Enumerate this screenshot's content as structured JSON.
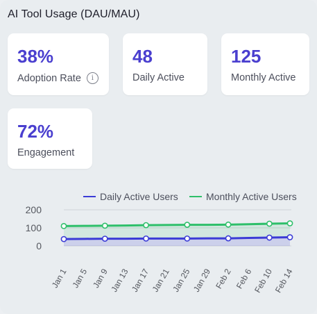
{
  "header": {
    "title": "AI Tool Usage (DAU/MAU)"
  },
  "cards": [
    {
      "value": "38%",
      "label": "Adoption Rate",
      "icon": "info-icon"
    },
    {
      "value": "48",
      "label": "Daily Active"
    },
    {
      "value": "125",
      "label": "Monthly Active"
    },
    {
      "value": "72%",
      "label": "Engagement"
    }
  ],
  "colors": {
    "accent": "#4a3fcf",
    "dau": "#3b3bd6",
    "mau": "#2ebf6a"
  },
  "chart_data": {
    "type": "line",
    "x": [
      "Jan 1",
      "Jan 5",
      "Jan 9",
      "Jan 13",
      "Jan 17",
      "Jan 21",
      "Jan 25",
      "Jan 29",
      "Feb 2",
      "Feb 6",
      "Feb 10",
      "Feb 14"
    ],
    "marker_every": 2,
    "series": [
      {
        "name": "Daily Active Users",
        "color": "#3b3bd6",
        "values": [
          38,
          39,
          40,
          40,
          41,
          41,
          41,
          42,
          42,
          44,
          46,
          48
        ]
      },
      {
        "name": "Monthly Active Users",
        "color": "#2ebf6a",
        "values": [
          110,
          111,
          112,
          113,
          115,
          116,
          117,
          117,
          118,
          120,
          123,
          125
        ]
      }
    ],
    "yticks": [
      "0",
      "100",
      "200"
    ],
    "ylim": [
      0,
      200
    ],
    "legend": "top",
    "grid": true
  }
}
